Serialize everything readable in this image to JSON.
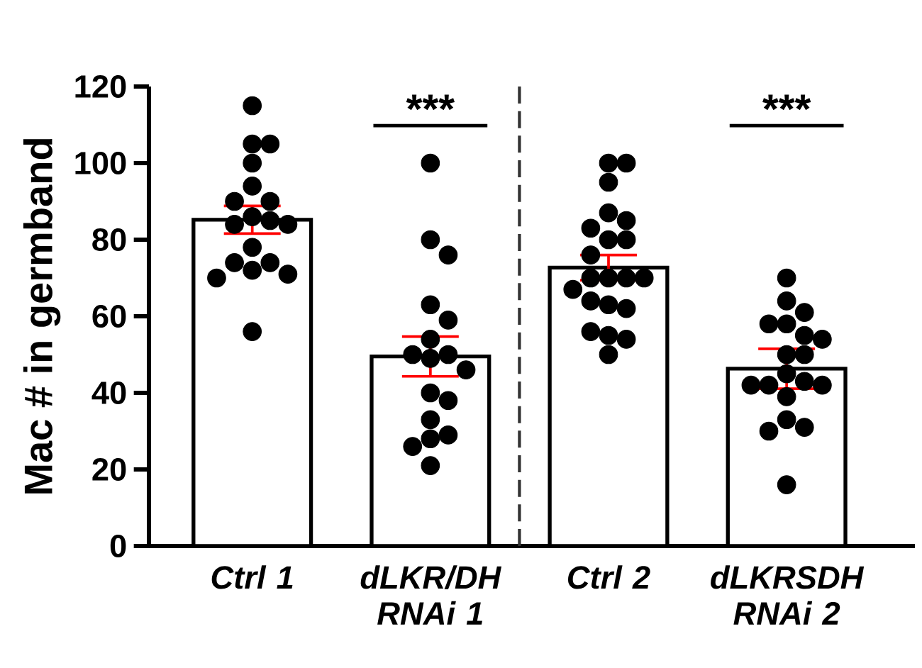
{
  "chart_data": {
    "type": "bar",
    "ylabel": "Mac # in germband",
    "categories": [
      "Ctrl 1",
      "dLKR/DH RNAi 1",
      "Ctrl 2",
      "dLKRSDH RNAi 2"
    ],
    "series": [
      {
        "color": "#ffffff",
        "values": [
          85.2,
          49.5,
          72.7,
          46.3
        ],
        "errors": [
          3.6,
          5.2,
          3.3,
          5.2
        ]
      },
      {
        "type": "scatter",
        "color": "#000000",
        "x": [
          "Ctrl 1",
          "Ctrl 1",
          "Ctrl 1",
          "Ctrl 1",
          "Ctrl 1",
          "Ctrl 1",
          "Ctrl 1",
          "Ctrl 1",
          "Ctrl 1",
          "Ctrl 1",
          "Ctrl 1",
          "Ctrl 1",
          "Ctrl 1",
          "Ctrl 1",
          "Ctrl 1",
          "Ctrl 1",
          "Ctrl 1",
          "Ctrl 1",
          "dLKR/DH RNAi 1",
          "dLKR/DH RNAi 1",
          "dLKR/DH RNAi 1",
          "dLKR/DH RNAi 1",
          "dLKR/DH RNAi 1",
          "dLKR/DH RNAi 1",
          "dLKR/DH RNAi 1",
          "dLKR/DH RNAi 1",
          "dLKR/DH RNAi 1",
          "dLKR/DH RNAi 1",
          "dLKR/DH RNAi 1",
          "dLKR/DH RNAi 1",
          "dLKR/DH RNAi 1",
          "dLKR/DH RNAi 1",
          "dLKR/DH RNAi 1",
          "dLKR/DH RNAi 1",
          "dLKR/DH RNAi 1",
          "Ctrl 2",
          "Ctrl 2",
          "Ctrl 2",
          "Ctrl 2",
          "Ctrl 2",
          "Ctrl 2",
          "Ctrl 2",
          "Ctrl 2",
          "Ctrl 2",
          "Ctrl 2",
          "Ctrl 2",
          "Ctrl 2",
          "Ctrl 2",
          "Ctrl 2",
          "Ctrl 2",
          "Ctrl 2",
          "Ctrl 2",
          "Ctrl 2",
          "Ctrl 2",
          "Ctrl 2",
          "Ctrl 2",
          "dLKRSDH RNAi 2",
          "dLKRSDH RNAi 2",
          "dLKRSDH RNAi 2",
          "dLKRSDH RNAi 2",
          "dLKRSDH RNAi 2",
          "dLKRSDH RNAi 2",
          "dLKRSDH RNAi 2",
          "dLKRSDH RNAi 2",
          "dLKRSDH RNAi 2",
          "dLKRSDH RNAi 2",
          "dLKRSDH RNAi 2",
          "dLKRSDH RNAi 2",
          "dLKRSDH RNAi 2",
          "dLKRSDH RNAi 2",
          "dLKRSDH RNAi 2",
          "dLKRSDH RNAi 2",
          "dLKRSDH RNAi 2",
          "dLKRSDH RNAi 2",
          "dLKRSDH RNAi 2"
        ],
        "values": [
          115,
          105,
          105,
          100,
          94,
          90,
          90,
          86,
          85,
          84,
          84,
          78,
          74,
          74,
          72,
          71,
          70,
          56,
          100,
          80,
          76,
          63,
          59,
          54,
          50,
          49,
          50,
          46,
          40,
          38,
          33,
          29,
          28,
          26,
          21,
          100,
          100,
          95,
          87,
          85,
          83,
          80,
          80,
          76,
          70,
          70,
          70,
          70,
          67,
          63,
          62,
          64,
          55,
          54,
          56,
          50,
          70,
          64,
          61,
          58,
          58,
          55,
          54,
          50,
          50,
          45,
          43,
          42,
          42,
          42,
          39,
          33,
          31,
          30,
          16
        ]
      }
    ],
    "ylim": [
      0,
      120
    ],
    "yticks": [
      0,
      20,
      40,
      60,
      80,
      100,
      120
    ],
    "annotations": [
      "***",
      "***"
    ]
  }
}
